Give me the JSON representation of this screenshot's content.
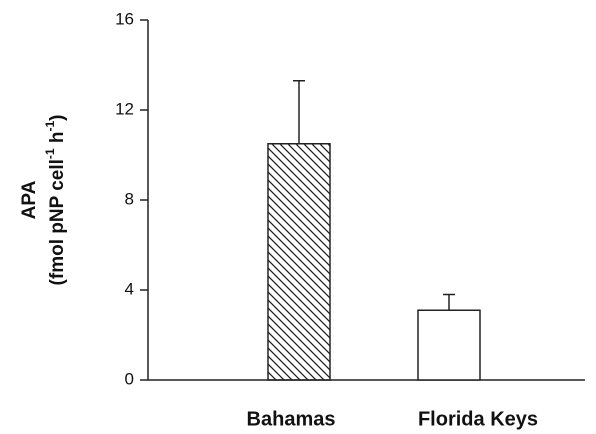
{
  "chart_data": {
    "type": "bar",
    "ylabel": "APA",
    "ylabel_units": [
      "(fmol pNP cell",
      "-1",
      " h",
      "-1",
      ")"
    ],
    "categories": [
      "Bahamas",
      "Florida Keys"
    ],
    "values": [
      10.5,
      3.1
    ],
    "errors": [
      2.8,
      0.7
    ],
    "fills": [
      "hatch",
      "#ffffff"
    ],
    "ylim": [
      0,
      16
    ],
    "yticks": [
      0,
      4,
      8,
      12,
      16
    ],
    "grid": false
  }
}
